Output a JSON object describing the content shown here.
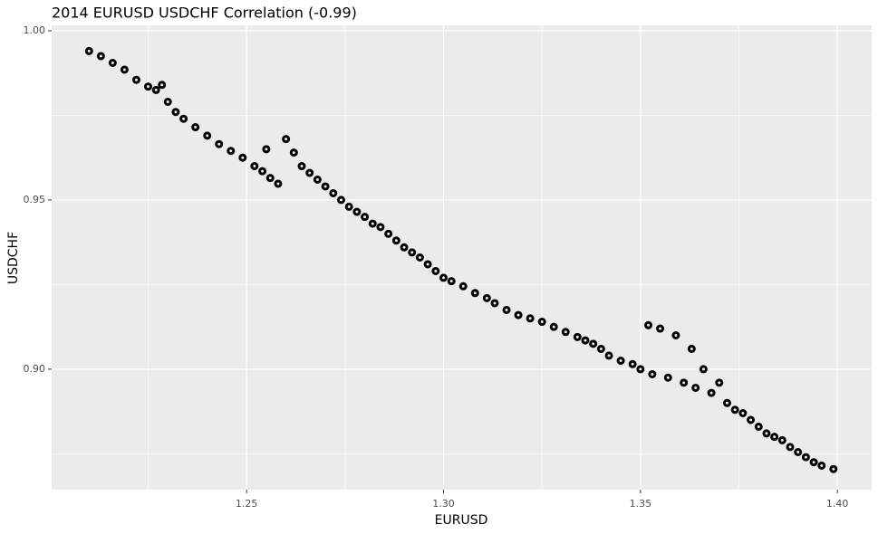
{
  "chart_data": {
    "type": "scatter",
    "title": "2014 EURUSD USDCHF Correlation (-0.99)",
    "x_label": "EURUSD",
    "y_label": "USDCHF",
    "color": "#000000",
    "grid": true,
    "xlim": [
      1.2005,
      1.4087
    ],
    "ylim": [
      0.8644,
      1.0016
    ],
    "xticks": [
      1.25,
      {
        "value": 1.3,
        "label": "1.30"
      },
      1.35,
      {
        "value": 1.4,
        "label": "1.40"
      }
    ],
    "yticks": [
      {
        "value": 0.9,
        "label": "0.90"
      },
      0.95,
      {
        "value": 1,
        "label": "1.00"
      }
    ],
    "x": [
      1.21,
      1.213,
      1.216,
      1.219,
      1.222,
      1.225,
      1.227,
      1.2285,
      1.23,
      1.232,
      1.234,
      1.237,
      1.24,
      1.243,
      1.246,
      1.249,
      1.252,
      1.254,
      1.256,
      1.258,
      1.255,
      1.26,
      1.262,
      1.264,
      1.266,
      1.268,
      1.27,
      1.272,
      1.274,
      1.276,
      1.278,
      1.28,
      1.282,
      1.284,
      1.286,
      1.288,
      1.29,
      1.292,
      1.294,
      1.296,
      1.298,
      1.3,
      1.302,
      1.305,
      1.308,
      1.311,
      1.313,
      1.316,
      1.319,
      1.322,
      1.325,
      1.328,
      1.331,
      1.334,
      1.336,
      1.338,
      1.34,
      1.342,
      1.345,
      1.348,
      1.35,
      1.352,
      1.353,
      1.355,
      1.357,
      1.359,
      1.361,
      1.363,
      1.364,
      1.366,
      1.368,
      1.37,
      1.372,
      1.374,
      1.376,
      1.378,
      1.38,
      1.382,
      1.384,
      1.386,
      1.388,
      1.39,
      1.392,
      1.394,
      1.396,
      1.399
    ],
    "y": [
      0.994,
      0.9925,
      0.9905,
      0.9885,
      0.9855,
      0.9835,
      0.9825,
      0.984,
      0.979,
      0.976,
      0.974,
      0.9715,
      0.969,
      0.9665,
      0.9645,
      0.9625,
      0.96,
      0.9585,
      0.9565,
      0.9548,
      0.965,
      0.968,
      0.964,
      0.96,
      0.958,
      0.956,
      0.954,
      0.952,
      0.95,
      0.948,
      0.9465,
      0.945,
      0.943,
      0.942,
      0.94,
      0.938,
      0.936,
      0.9345,
      0.933,
      0.931,
      0.929,
      0.927,
      0.926,
      0.9245,
      0.9225,
      0.921,
      0.9195,
      0.9175,
      0.916,
      0.915,
      0.914,
      0.9125,
      0.911,
      0.9095,
      0.9085,
      0.9075,
      0.906,
      0.904,
      0.9025,
      0.9015,
      0.9,
      0.913,
      0.8985,
      0.912,
      0.8975,
      0.91,
      0.896,
      0.906,
      0.8945,
      0.9,
      0.893,
      0.896,
      0.89,
      0.888,
      0.887,
      0.885,
      0.883,
      0.881,
      0.88,
      0.879,
      0.877,
      0.8755,
      0.874,
      0.8725,
      0.8715,
      0.8705
    ]
  }
}
